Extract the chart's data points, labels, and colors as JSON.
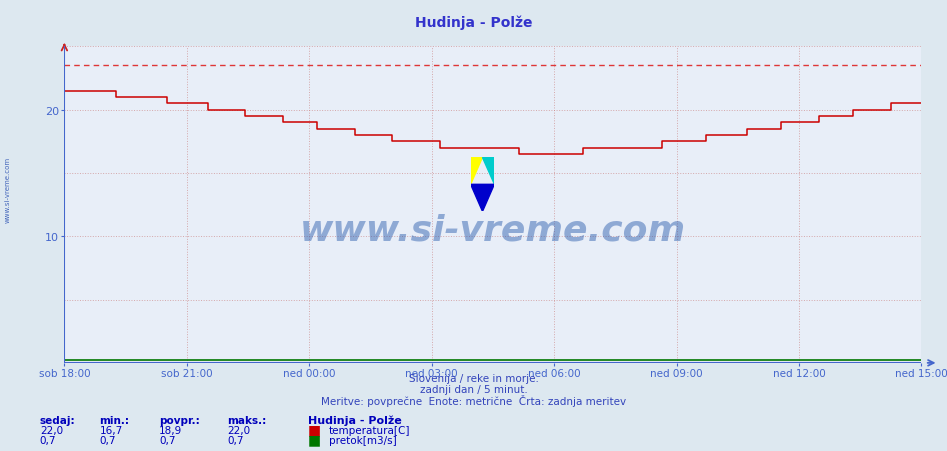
{
  "title": "Hudinja - Polže",
  "title_color": "#3333cc",
  "background_color": "#dde8f0",
  "plot_bg_color": "#e8eef8",
  "axis_color": "#4466cc",
  "grid_color": "#cc8888",
  "grid_alpha": 0.7,
  "xlim": [
    0,
    1260
  ],
  "ylim": [
    0,
    25
  ],
  "yticks": [
    10,
    20
  ],
  "xtick_labels": [
    "sob 18:00",
    "sob 21:00",
    "ned 00:00",
    "ned 03:00",
    "ned 06:00",
    "ned 09:00",
    "ned 12:00",
    "ned 15:00"
  ],
  "xtick_positions": [
    0,
    180,
    360,
    540,
    720,
    900,
    1080,
    1260
  ],
  "temp_max": 22.0,
  "temp_min": 16.7,
  "temp_avg": 18.9,
  "temp_current": 22.0,
  "flow_current": 0.7,
  "flow_min": 0.7,
  "flow_avg": 0.7,
  "flow_max": 0.7,
  "temp_color": "#cc0000",
  "flow_color": "#007700",
  "dashed_line_y": 23.5,
  "dashed_color": "#dd2222",
  "watermark_text": "www.si-vreme.com",
  "watermark_color": "#2255aa",
  "watermark_alpha": 0.45,
  "sidebar_text": "www.si-vreme.com",
  "sidebar_color": "#4466bb",
  "footer_line1": "Slovenija / reke in morje.",
  "footer_line2": "zadnji dan / 5 minut.",
  "footer_line3": "Meritve: povprečne  Enote: metrične  Črta: zadnja meritev",
  "footer_color": "#3344bb",
  "legend_title": "Hudinja - Polže",
  "legend_color": "#0000bb",
  "label_temp": "temperatura[C]",
  "label_flow": "pretok[m3/s]",
  "stats_labels": [
    "sedaj:",
    "min.:",
    "povpr.:",
    "maks.:"
  ],
  "stats_temp": [
    22.0,
    16.7,
    18.9,
    22.0
  ],
  "stats_flow": [
    0.7,
    0.7,
    0.7,
    0.7
  ],
  "stats_color": "#0000bb"
}
